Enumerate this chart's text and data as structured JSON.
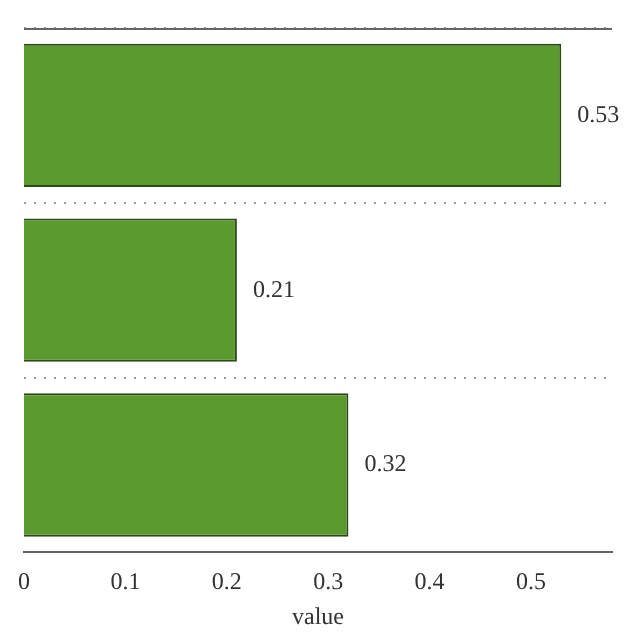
{
  "chart_data": {
    "type": "bar",
    "orientation": "horizontal",
    "xlabel": "value",
    "categories": [
      null,
      null,
      null
    ],
    "values": [
      0.53,
      0.21,
      0.32
    ],
    "color": "#5a9a2e",
    "xlim": [
      0,
      0.58
    ],
    "xticks": [
      0,
      0.1,
      0.2,
      0.3,
      0.4,
      0.5
    ],
    "data_labels": true,
    "grid": "y"
  }
}
